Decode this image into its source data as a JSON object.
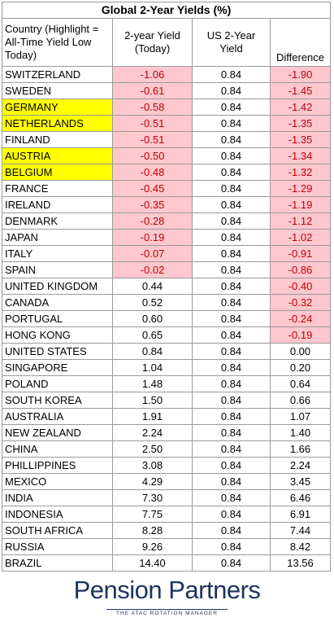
{
  "title": "Global 2-Year Yields (%)",
  "table": {
    "header": [
      "Country (Highlight = All-Time Yield Low Today)",
      "2-year Yield (Today)",
      "US 2-Year Yield",
      "Difference"
    ],
    "rows": [
      [
        "SWITZERLAND",
        "-1.06",
        "0.84",
        "-1.90"
      ],
      [
        "SWEDEN",
        "-0.61",
        "0.84",
        "-1.45"
      ],
      [
        "GERMANY",
        "-0.58",
        "0.84",
        "-1.42"
      ],
      [
        "NETHERLANDS",
        "-0.51",
        "0.84",
        "-1.35"
      ],
      [
        "FINLAND",
        "-0.51",
        "0.84",
        "-1.35"
      ],
      [
        "AUSTRIA",
        "-0.50",
        "0.84",
        "-1.34"
      ],
      [
        "BELGIUM",
        "-0.48",
        "0.84",
        "-1.32"
      ],
      [
        "FRANCE",
        "-0.45",
        "0.84",
        "-1.29"
      ],
      [
        "IRELAND",
        "-0.35",
        "0.84",
        "-1.19"
      ],
      [
        "DENMARK",
        "-0.28",
        "0.84",
        "-1.12"
      ],
      [
        "JAPAN",
        "-0.19",
        "0.84",
        "-1.02"
      ],
      [
        "ITALY",
        "-0.07",
        "0.84",
        "-0.91"
      ],
      [
        "SPAIN",
        "-0.02",
        "0.84",
        "-0.86"
      ],
      [
        "UNITED KINGDOM",
        "0.44",
        "0.84",
        "-0.40"
      ],
      [
        "CANADA",
        "0.52",
        "0.84",
        "-0.32"
      ],
      [
        "PORTUGAL",
        "0.60",
        "0.84",
        "-0.24"
      ],
      [
        "HONG KONG",
        "0.65",
        "0.84",
        "-0.19"
      ],
      [
        "UNITED STATES",
        "0.84",
        "0.84",
        "0.00"
      ],
      [
        "SINGAPORE",
        "1.04",
        "0.84",
        "0.20"
      ],
      [
        "POLAND",
        "1.48",
        "0.84",
        "0.64"
      ],
      [
        "SOUTH KOREA",
        "1.50",
        "0.84",
        "0.66"
      ],
      [
        "AUSTRALIA",
        "1.91",
        "0.84",
        "1.07"
      ],
      [
        "NEW ZEALAND",
        "2.24",
        "0.84",
        "1.40"
      ],
      [
        "CHINA",
        "2.50",
        "0.84",
        "1.66"
      ],
      [
        "PHILLIPPINES",
        "3.08",
        "0.84",
        "2.24"
      ],
      [
        "MEXICO",
        "4.29",
        "0.84",
        "3.45"
      ],
      [
        "INDIA",
        "7.30",
        "0.84",
        "6.46"
      ],
      [
        "INDONESIA",
        "7.75",
        "0.84",
        "6.91"
      ],
      [
        "SOUTH AFRICA",
        "8.28",
        "0.84",
        "7.44"
      ],
      [
        "RUSSIA",
        "9.26",
        "0.84",
        "8.42"
      ],
      [
        "BRAZIL",
        "14.40",
        "0.84",
        "13.56"
      ]
    ],
    "highlight_rows": [
      2,
      3,
      5,
      6
    ]
  },
  "logo": {
    "name": "Pension Partners",
    "tagline": "THE ATAC ROTATION MANAGER"
  }
}
